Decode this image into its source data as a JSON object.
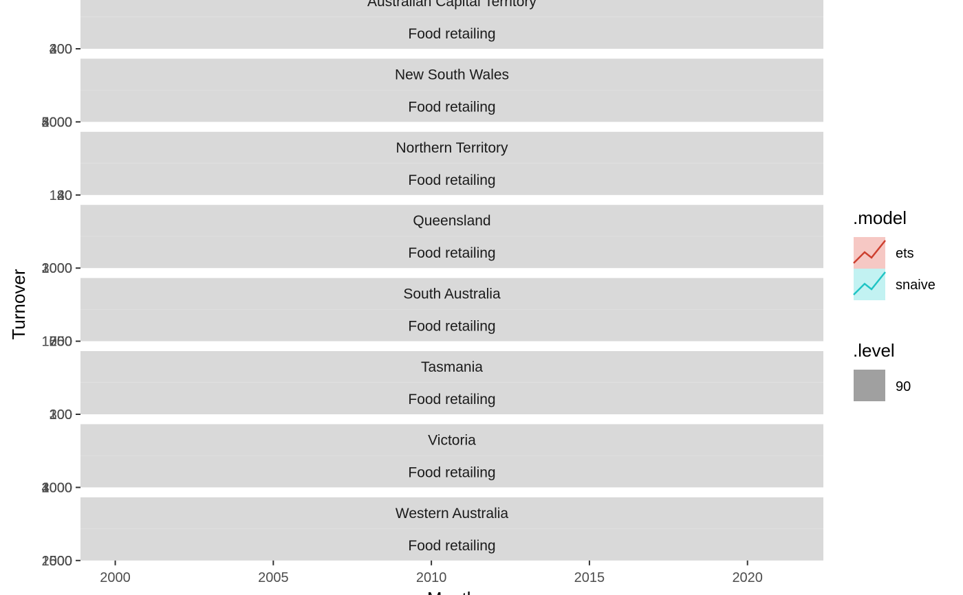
{
  "chart_data": {
    "type": "line",
    "title": "",
    "xlabel": "Month",
    "ylabel": "Turnover",
    "xlim": [
      1998.9,
      2022.4
    ],
    "x_ticks": [
      "2000",
      "2005",
      "2010",
      "2015",
      "2020"
    ],
    "grid": true,
    "legend_position": "right",
    "panels": [
      {
        "state": "Australian Capital Territory",
        "industry": "Food retailing",
        "y_ticks": [
          "200",
          "300",
          "400"
        ]
      },
      {
        "state": "New South Wales",
        "industry": "Food retailing",
        "y_ticks": [
          "2000",
          "3000",
          "4000",
          "5000"
        ]
      },
      {
        "state": "Northern Territory",
        "industry": "Food retailing",
        "y_ticks": [
          "40",
          "80",
          "120"
        ]
      },
      {
        "state": "Queensland",
        "industry": "Food retailing",
        "y_ticks": [
          "1000",
          "2000",
          "3000"
        ]
      },
      {
        "state": "South Australia",
        "industry": "Food retailing",
        "y_ticks": [
          "250",
          "500",
          "750",
          "1000",
          "1250"
        ]
      },
      {
        "state": "Tasmania",
        "industry": "Food retailing",
        "y_ticks": [
          "100",
          "200",
          "300"
        ]
      },
      {
        "state": "Victoria",
        "industry": "Food retailing",
        "y_ticks": [
          "1000",
          "2000",
          "3000",
          "4000"
        ]
      },
      {
        "state": "Western Australia",
        "industry": "Food retailing",
        "y_ticks": [
          "500",
          "1000",
          "1500",
          "2000"
        ]
      }
    ],
    "legend": {
      "model_title": ".model",
      "models": [
        {
          "name": "ets",
          "color": "#cd3f2f",
          "fill": "#f6c8c4"
        },
        {
          "name": "snaive",
          "color": "#1fc4c4",
          "fill": "#c2f2f2"
        }
      ],
      "level_title": ".level",
      "levels": [
        {
          "name": "90",
          "color": "#a0a0a0"
        }
      ]
    }
  }
}
